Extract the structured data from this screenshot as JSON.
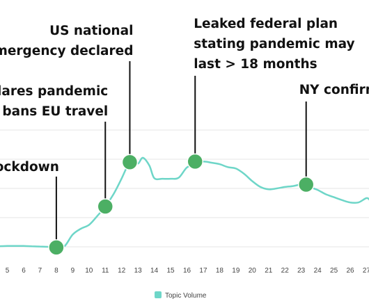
{
  "chart_data": {
    "type": "line",
    "colors": {
      "line": "#6ed6c8",
      "marker": "#4caf64",
      "marker_stroke": "#ffffff",
      "grid": "#e6e6e6",
      "annotation_line": "#111111"
    },
    "grid": true,
    "legend": {
      "position": "bottom-center",
      "entries": [
        "Topic Volume"
      ]
    },
    "series": [
      {
        "name": "Topic Volume",
        "x": [
          4,
          4.5,
          5,
          5.5,
          6,
          6.5,
          7,
          7.5,
          8,
          8.5,
          9,
          9.5,
          10,
          10.5,
          11,
          11.5,
          12,
          12.4,
          12.7,
          13,
          13.3,
          13.7,
          14,
          14.5,
          15,
          15.5,
          16,
          16.5,
          17,
          17.5,
          18,
          18.5,
          19,
          19.5,
          20,
          20.5,
          21,
          21.5,
          22,
          22.5,
          23,
          23.5,
          24,
          24.5,
          25,
          25.5,
          26,
          26.5,
          27,
          27.2
        ],
        "values": [
          0.5,
          0.52,
          0.53,
          0.53,
          0.53,
          0.52,
          0.51,
          0.5,
          0.48,
          0.52,
          0.92,
          1.12,
          1.25,
          1.55,
          1.88,
          2.3,
          2.84,
          3.32,
          3.5,
          3.35,
          3.55,
          3.28,
          2.85,
          2.83,
          2.83,
          2.87,
          3.22,
          3.32,
          3.42,
          3.38,
          3.33,
          3.23,
          3.18,
          3.0,
          2.75,
          2.55,
          2.47,
          2.5,
          2.55,
          2.58,
          2.63,
          2.55,
          2.45,
          2.3,
          2.2,
          2.1,
          2.02,
          2.02,
          2.17,
          2.1
        ]
      }
    ],
    "x_ticks": [
      5,
      6,
      7,
      8,
      9,
      10,
      11,
      12,
      13,
      14,
      15,
      16,
      17,
      18,
      19,
      20,
      21,
      22,
      23,
      24,
      25,
      26,
      27
    ],
    "x_tick_labels": [
      "5",
      "6",
      "7",
      "8",
      "9",
      "10",
      "11",
      "12",
      "13",
      "14",
      "15",
      "16",
      "17",
      "18",
      "19",
      "20",
      "21",
      "22",
      "23",
      "24",
      "25",
      "26",
      "27"
    ],
    "xlim": [
      4.55,
      27.15
    ],
    "ylim": [
      0,
      5
    ],
    "y_gridlines": [
      0.5,
      1.5,
      2.5,
      3.5,
      4.5
    ],
    "events": [
      {
        "x": 8,
        "y": 0.48,
        "lines": [
          "lockdown"
        ]
      },
      {
        "x": 11,
        "y": 1.88,
        "lines": [
          "eclares pandemic",
          "p bans EU travel"
        ]
      },
      {
        "x": 12.5,
        "y": 3.4,
        "lines": [
          "US national",
          "emergency declared"
        ]
      },
      {
        "x": 16.5,
        "y": 3.42,
        "lines": [
          "Leaked federal plan",
          "stating pandemic may",
          "last > 18 months"
        ]
      },
      {
        "x": 23.3,
        "y": 2.63,
        "lines": [
          "NY confirm"
        ]
      }
    ]
  }
}
